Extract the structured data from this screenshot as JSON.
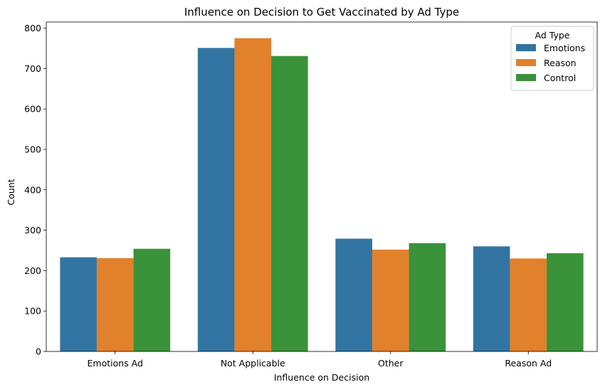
{
  "chart_data": {
    "type": "bar",
    "title": "Influence on Decision to Get Vaccinated by Ad Type",
    "xlabel": "Influence on Decision",
    "ylabel": "Count",
    "categories": [
      "Emotions Ad",
      "Not Applicable",
      "Other",
      "Reason Ad"
    ],
    "series": [
      {
        "name": "Emotions",
        "color": "#3274a1",
        "values": [
          233,
          751,
          279,
          260
        ]
      },
      {
        "name": "Reason",
        "color": "#e1812c",
        "values": [
          231,
          775,
          252,
          230
        ]
      },
      {
        "name": "Control",
        "color": "#3a923a",
        "values": [
          254,
          731,
          268,
          243
        ]
      }
    ],
    "ylim": [
      0,
      815
    ],
    "yticks": [
      0,
      100,
      200,
      300,
      400,
      500,
      600,
      700,
      800
    ],
    "grid": false,
    "legend": {
      "title": "Ad Type",
      "position": "top-right"
    }
  }
}
